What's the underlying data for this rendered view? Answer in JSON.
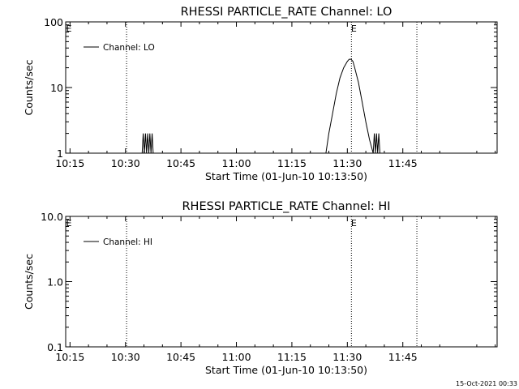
{
  "chart_data": [
    {
      "type": "line",
      "title": "RHESSI PARTICLE_RATE Channel: LO",
      "xlabel": "Start Time (01-Jun-10 10:13:50)",
      "ylabel": "Counts/sec",
      "xlim_min": [
        613.83,
        730.5
      ],
      "ylim": [
        1,
        100
      ],
      "yscale": "log",
      "x_ticks": [
        "10:15",
        "10:30",
        "10:45",
        "11:00",
        "11:15",
        "11:30",
        "11:45"
      ],
      "x_tick_min": [
        615,
        630,
        645,
        660,
        675,
        690,
        705
      ],
      "y_ticks": [
        "1",
        "10",
        "100"
      ],
      "y_tick_vals": [
        1,
        10,
        100
      ],
      "vlines_min": [
        630.3,
        691.1,
        708.8
      ],
      "marker_label": "E",
      "legend": {
        "label": "Channel: LO",
        "position": "top-left"
      },
      "series": [
        {
          "name": "Channel: LO",
          "x_min": [
            634.5,
            634.8,
            635.1,
            635.4,
            635.7,
            636.0,
            636.3,
            636.6,
            636.9,
            637.2,
            637.5,
            684.2,
            685.0,
            686.0,
            687.0,
            688.0,
            689.0,
            690.0,
            690.5,
            691.0,
            691.5,
            692.0,
            693.0,
            694.0,
            695.0,
            696.0,
            697.0,
            697.3,
            697.6,
            697.9,
            698.2,
            698.5,
            698.8
          ],
          "y": [
            1,
            2,
            1,
            2,
            1,
            2,
            1,
            2,
            1,
            2,
            1,
            1,
            2,
            4,
            8,
            14,
            20,
            25,
            27,
            27,
            25,
            20,
            12,
            6,
            3,
            1.6,
            1,
            2,
            1,
            2,
            1,
            2,
            1
          ]
        }
      ]
    },
    {
      "type": "line",
      "title": "RHESSI PARTICLE_RATE Channel: HI",
      "xlabel": "Start Time (01-Jun-10 10:13:50)",
      "ylabel": "Counts/sec",
      "xlim_min": [
        613.83,
        730.5
      ],
      "ylim": [
        0.1,
        10
      ],
      "yscale": "log",
      "x_ticks": [
        "10:15",
        "10:30",
        "10:45",
        "11:00",
        "11:15",
        "11:30",
        "11:45"
      ],
      "x_tick_min": [
        615,
        630,
        645,
        660,
        675,
        690,
        705
      ],
      "y_ticks": [
        "0.1",
        "1.0",
        "10.0"
      ],
      "y_tick_vals": [
        0.1,
        1,
        10
      ],
      "vlines_min": [
        630.3,
        691.1,
        708.8
      ],
      "marker_label": "E",
      "legend": {
        "label": "Channel: HI",
        "position": "top-left"
      },
      "series": [
        {
          "name": "Channel: HI",
          "x_min": [],
          "y": []
        }
      ]
    }
  ],
  "footer": {
    "timestamp": "15-Oct-2021 00:33"
  }
}
